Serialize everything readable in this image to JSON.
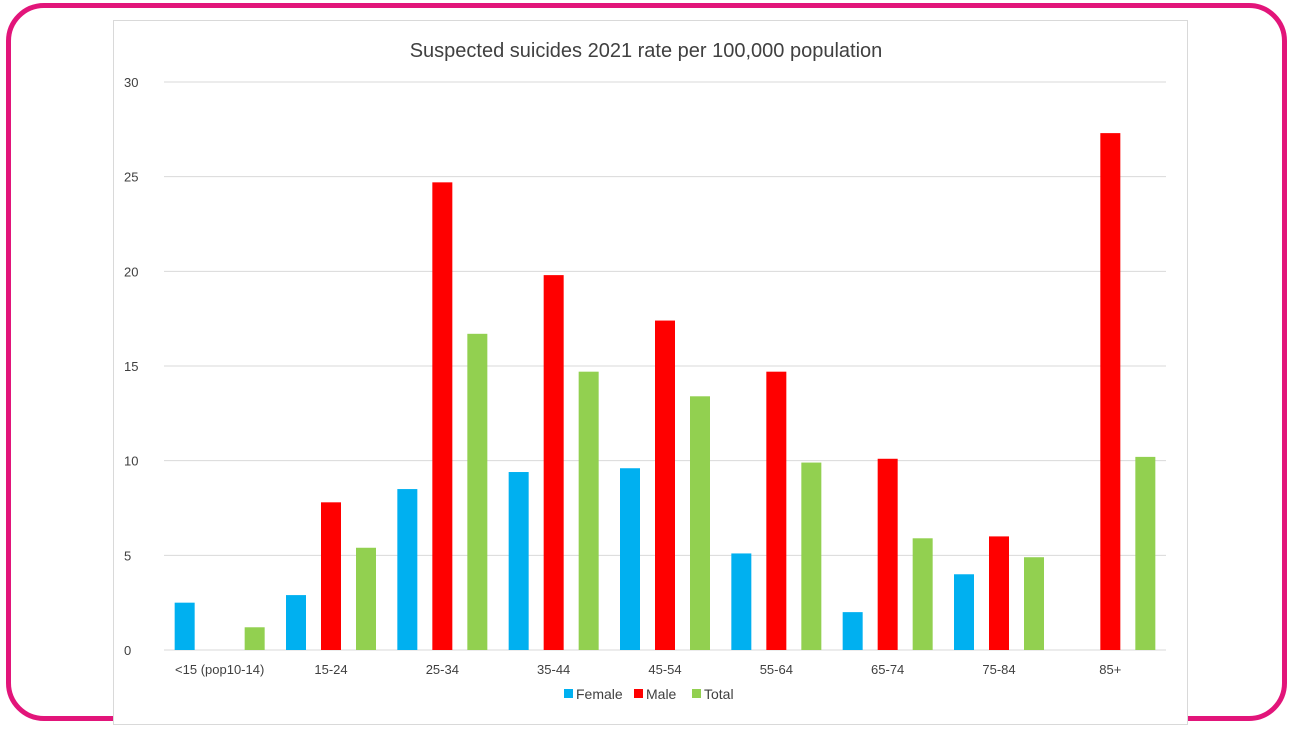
{
  "chart_data": {
    "type": "bar",
    "title": "Suspected suicides 2021 rate per 100,000 population",
    "xlabel": "",
    "ylabel": "",
    "ylim": [
      0,
      30
    ],
    "yticks": [
      0,
      5,
      10,
      15,
      20,
      25,
      30
    ],
    "grid": true,
    "legend_position": "bottom",
    "categories": [
      "<15 (pop10-14)",
      "15-24",
      "25-34",
      "35-44",
      "45-54",
      "55-64",
      "65-74",
      "75-84",
      "85+"
    ],
    "series": [
      {
        "name": "Female",
        "color": "#00b0f0",
        "values": [
          2.5,
          2.9,
          8.5,
          9.4,
          9.6,
          5.1,
          2.0,
          4.0,
          null
        ]
      },
      {
        "name": "Male",
        "color": "#ff0000",
        "values": [
          null,
          7.8,
          24.7,
          19.8,
          17.4,
          14.7,
          10.1,
          6.0,
          27.3
        ]
      },
      {
        "name": "Total",
        "color": "#92d050",
        "values": [
          1.2,
          5.4,
          16.7,
          14.7,
          13.4,
          9.9,
          5.9,
          4.9,
          10.2
        ]
      }
    ]
  },
  "frame": {
    "border_color": "#e2157a",
    "gridline_color": "#d9d9d9",
    "text_color": "#404040"
  }
}
